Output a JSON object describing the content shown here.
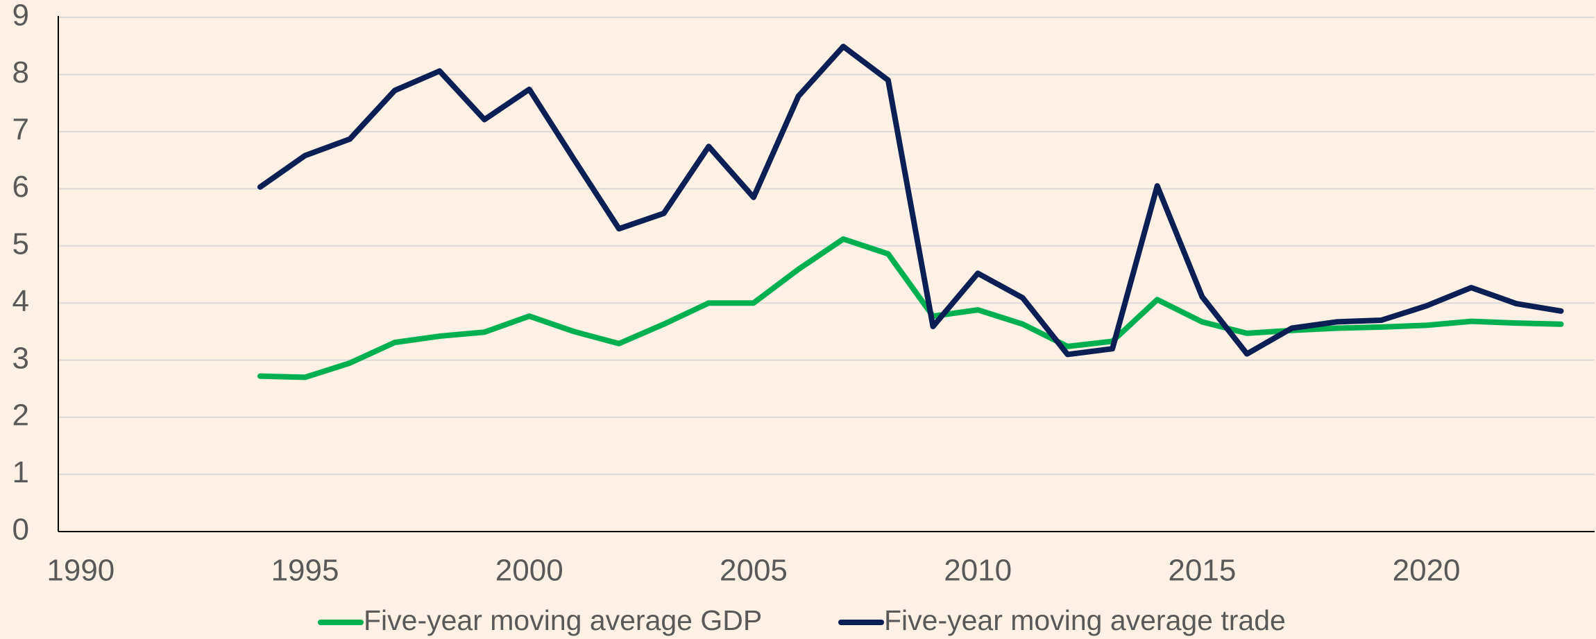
{
  "chart_data": {
    "type": "line",
    "x": [
      1994,
      1995,
      1996,
      1997,
      1998,
      1999,
      2000,
      2001,
      2002,
      2003,
      2004,
      2005,
      2006,
      2007,
      2008,
      2009,
      2010,
      2011,
      2012,
      2013,
      2014,
      2015,
      2016,
      2017,
      2018,
      2019,
      2020,
      2021,
      2022,
      2023
    ],
    "series": [
      {
        "name": "Five-year moving average GDP",
        "color": "#00b050",
        "values": [
          2.72,
          2.7,
          2.95,
          3.31,
          3.42,
          3.49,
          3.77,
          3.5,
          3.29,
          3.63,
          4.0,
          4.0,
          4.59,
          5.12,
          4.86,
          3.77,
          3.88,
          3.63,
          3.24,
          3.33,
          4.06,
          3.67,
          3.47,
          3.52,
          3.56,
          3.58,
          3.61,
          3.68,
          3.65,
          3.63
        ]
      },
      {
        "name": "Five-year moving average trade",
        "color": "#0c1f55",
        "values": [
          6.03,
          6.58,
          6.87,
          7.72,
          8.06,
          7.21,
          7.74,
          6.51,
          5.3,
          5.57,
          6.74,
          5.85,
          7.62,
          8.49,
          7.9,
          3.59,
          4.52,
          4.09,
          3.1,
          3.2,
          6.05,
          4.11,
          3.11,
          3.56,
          3.67,
          3.7,
          3.95,
          4.27,
          3.99,
          3.86
        ]
      }
    ],
    "xlim": [
      1989.5,
      2023.75
    ],
    "xticks": [
      1990,
      1995,
      2000,
      2005,
      2010,
      2015,
      2020
    ],
    "ylim": [
      0,
      9
    ],
    "yticks": [
      0,
      1,
      2,
      3,
      4,
      5,
      6,
      7,
      8,
      9
    ],
    "grid": true,
    "legend": "bottom"
  }
}
